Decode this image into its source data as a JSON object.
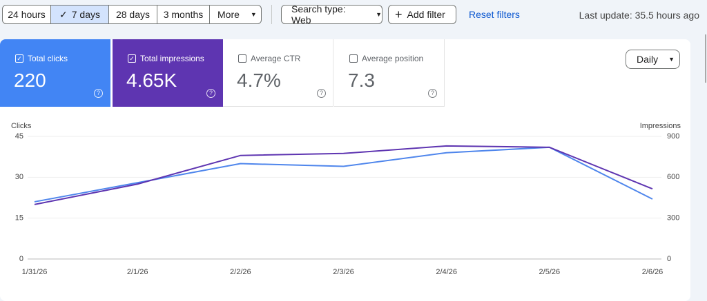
{
  "toolbar": {
    "ranges": [
      "24 hours",
      "7 days",
      "28 days",
      "3 months",
      "More"
    ],
    "search_type": "Search type: Web",
    "add_filter": "Add filter",
    "reset_filters": "Reset filters",
    "last_update": "Last update: 35.5 hours ago"
  },
  "metrics": [
    {
      "label": "Total clicks",
      "value": "220"
    },
    {
      "label": "Total impressions",
      "value": "4.65K"
    },
    {
      "label": "Average CTR",
      "value": "4.7%"
    },
    {
      "label": "Average position",
      "value": "7.3"
    }
  ],
  "granularity": "Daily",
  "chart_data": {
    "type": "line",
    "x": [
      "1/31/26",
      "2/1/26",
      "2/2/26",
      "2/3/26",
      "2/4/26",
      "2/5/26",
      "2/6/26"
    ],
    "series": [
      {
        "name": "Clicks",
        "color": "#4f86ec",
        "values": [
          21,
          28,
          35,
          34,
          39,
          41,
          22
        ]
      },
      {
        "name": "Impressions",
        "color": "#5e35b1",
        "axis": "y2",
        "values": [
          400,
          550,
          760,
          775,
          830,
          820,
          515
        ]
      }
    ],
    "ylim": [
      0,
      45
    ],
    "yticks": [
      0,
      15,
      30,
      45
    ],
    "y2lim": [
      0,
      900
    ],
    "y2ticks": [
      0,
      300,
      600,
      900
    ],
    "grid": true
  }
}
